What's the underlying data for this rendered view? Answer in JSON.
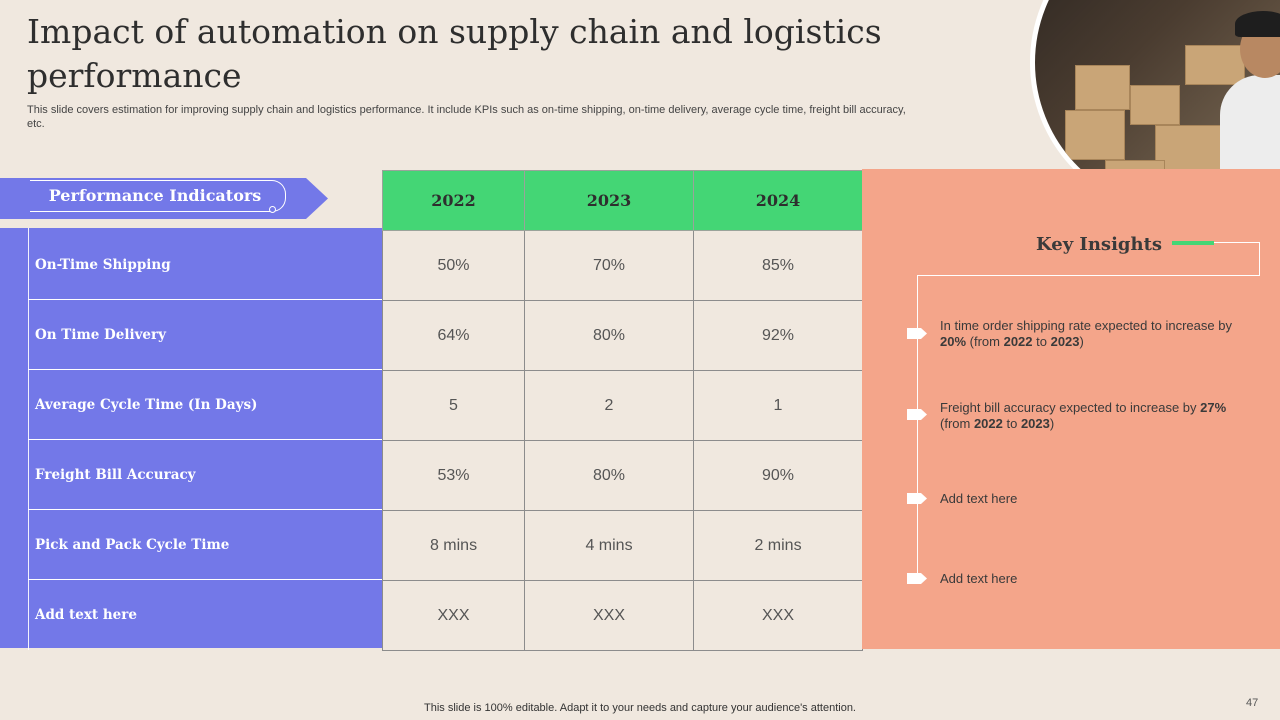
{
  "slide": {
    "title": "Impact of automation on supply chain and logistics performance",
    "subtitle": "This slide covers estimation for improving supply chain and logistics performance. It include KPIs such as on-time shipping, on-time delivery, average cycle time, freight bill accuracy, etc.",
    "footer": "This slide is 100% editable. Adapt it to your needs and capture your audience's attention.",
    "page_number": "47"
  },
  "table": {
    "header_label": "Performance Indicators",
    "years": [
      "2022",
      "2023",
      "2024"
    ],
    "rows": [
      {
        "label": "On-Time Shipping",
        "values": [
          "50%",
          "70%",
          "85%"
        ]
      },
      {
        "label": "On Time Delivery",
        "values": [
          "64%",
          "80%",
          "92%"
        ]
      },
      {
        "label": "Average Cycle Time (In Days)",
        "values": [
          "5",
          "2",
          "1"
        ]
      },
      {
        "label": "Freight Bill Accuracy",
        "values": [
          "53%",
          "80%",
          "90%"
        ]
      },
      {
        "label": "Pick and Pack Cycle Time",
        "values": [
          "8 mins",
          "4 mins",
          "2 mins"
        ]
      },
      {
        "label": "Add text here",
        "values": [
          "XXX",
          "XXX",
          "XXX"
        ]
      }
    ]
  },
  "insights": {
    "title": "Key Insights",
    "items": [
      {
        "pre": "In time order shipping rate expected to increase by ",
        "pct": "20%",
        "mid": " (from ",
        "from": "2022",
        "to_word": " to ",
        "to": "2023",
        "post": ")"
      },
      {
        "pre": "Freight bill accuracy expected to increase by ",
        "pct": "27%",
        "mid": " (from ",
        "from": "2022",
        "to_word": " to ",
        "to": "2023",
        "post": ")"
      }
    ],
    "placeholder_1": "Add text here",
    "placeholder_2": "Add text here"
  },
  "colors": {
    "background": "#F0E8DF",
    "indicator_panel": "#7378E8",
    "year_header": "#44D675",
    "insights_panel": "#F4A58A"
  }
}
